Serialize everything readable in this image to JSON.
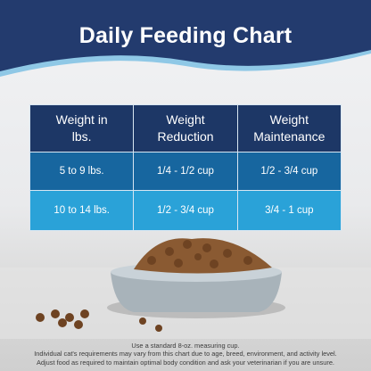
{
  "header": {
    "title": "Daily Feeding Chart"
  },
  "table": {
    "columns": [
      [
        "Weight in",
        "lbs."
      ],
      [
        "Weight",
        "Reduction"
      ],
      [
        "Weight",
        "Maintenance"
      ]
    ],
    "rows": [
      [
        "5 to 9 lbs.",
        "1/4 - 1/2 cup",
        "1/2 - 3/4 cup"
      ],
      [
        "10 to 14 lbs.",
        "1/2 - 3/4 cup",
        "3/4 - 1 cup"
      ]
    ]
  },
  "footer": {
    "notes": [
      "Use a standard 8-oz. measuring cup.",
      "Individual cat's requirements may vary from this chart due to age, breed, environment, and activity level.",
      "Adjust food as required to maintain optimal body condition and ask your veterinarian if you are unsure."
    ]
  }
}
